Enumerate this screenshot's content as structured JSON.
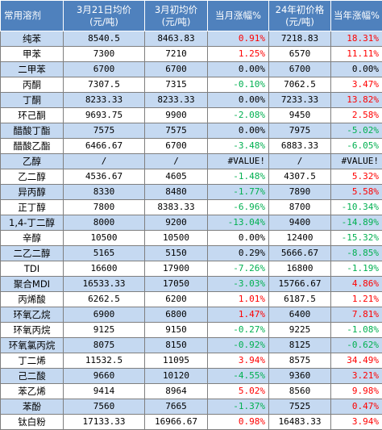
{
  "headers": [
    [
      "常用溶剂"
    ],
    [
      "3月21日均价",
      "(元/吨)"
    ],
    [
      "3月初均价",
      "(元/吨)"
    ],
    [
      "当月涨幅%"
    ],
    [
      "24年初价格",
      "(元/吨)"
    ],
    [
      "当年涨幅%"
    ]
  ],
  "colors": {
    "header": "#4f81bd",
    "row_alt": "#c5d9f1",
    "up": "#ff0000",
    "down": "#00b050"
  },
  "rows": [
    {
      "name": "纯苯",
      "cur": "8540.5",
      "start": "8463.83",
      "mom": "0.91%",
      "mom_dir": "up",
      "y24": "7218.83",
      "ytd": "18.31%",
      "ytd_dir": "up"
    },
    {
      "name": "甲苯",
      "cur": "7300",
      "start": "7210",
      "mom": "1.25%",
      "mom_dir": "up",
      "y24": "6570",
      "ytd": "11.11%",
      "ytd_dir": "up"
    },
    {
      "name": "二甲苯",
      "cur": "6700",
      "start": "6700",
      "mom": "0.00%",
      "mom_dir": "flat",
      "y24": "6700",
      "ytd": "0.00%",
      "ytd_dir": "flat"
    },
    {
      "name": "丙酮",
      "cur": "7307.5",
      "start": "7315",
      "mom": "-0.10%",
      "mom_dir": "down",
      "y24": "7062.5",
      "ytd": "3.47%",
      "ytd_dir": "up"
    },
    {
      "name": "丁酮",
      "cur": "8233.33",
      "start": "8233.33",
      "mom": "0.00%",
      "mom_dir": "flat",
      "y24": "7233.33",
      "ytd": "13.82%",
      "ytd_dir": "up"
    },
    {
      "name": "环己酮",
      "cur": "9693.75",
      "start": "9900",
      "mom": "-2.08%",
      "mom_dir": "down",
      "y24": "9450",
      "ytd": "2.58%",
      "ytd_dir": "up"
    },
    {
      "name": "醋酸丁酯",
      "cur": "7575",
      "start": "7575",
      "mom": "0.00%",
      "mom_dir": "flat",
      "y24": "7975",
      "ytd": "-5.02%",
      "ytd_dir": "down"
    },
    {
      "name": "醋酸乙酯",
      "cur": "6466.67",
      "start": "6700",
      "mom": "-3.48%",
      "mom_dir": "down",
      "y24": "6883.33",
      "ytd": "-6.05%",
      "ytd_dir": "down"
    },
    {
      "name": "乙醇",
      "cur": "/",
      "start": "/",
      "mom": "#VALUE!",
      "mom_dir": "flat",
      "y24": "/",
      "ytd": "#VALUE!",
      "ytd_dir": "flat"
    },
    {
      "name": "乙二醇",
      "cur": "4536.67",
      "start": "4605",
      "mom": "-1.48%",
      "mom_dir": "down",
      "y24": "4307.5",
      "ytd": "5.32%",
      "ytd_dir": "up"
    },
    {
      "name": "异丙醇",
      "cur": "8330",
      "start": "8480",
      "mom": "-1.77%",
      "mom_dir": "down",
      "y24": "7890",
      "ytd": "5.58%",
      "ytd_dir": "up"
    },
    {
      "name": "正丁醇",
      "cur": "7800",
      "start": "8383.33",
      "mom": "-6.96%",
      "mom_dir": "down",
      "y24": "8700",
      "ytd": "-10.34%",
      "ytd_dir": "down"
    },
    {
      "name": "1,4-丁二醇",
      "cur": "8000",
      "start": "9200",
      "mom": "-13.04%",
      "mom_dir": "down",
      "y24": "9400",
      "ytd": "-14.89%",
      "ytd_dir": "down"
    },
    {
      "name": "辛醇",
      "cur": "10500",
      "start": "10500",
      "mom": "0.00%",
      "mom_dir": "flat",
      "y24": "12400",
      "ytd": "-15.32%",
      "ytd_dir": "down"
    },
    {
      "name": "二乙二醇",
      "cur": "5165",
      "start": "5150",
      "mom": "0.29%",
      "mom_dir": "flat",
      "y24": "5666.67",
      "ytd": "-8.85%",
      "ytd_dir": "down"
    },
    {
      "name": "TDI",
      "cur": "16600",
      "start": "17900",
      "mom": "-7.26%",
      "mom_dir": "down",
      "y24": "16800",
      "ytd": "-1.19%",
      "ytd_dir": "down"
    },
    {
      "name": "聚合MDI",
      "cur": "16533.33",
      "start": "17050",
      "mom": "-3.03%",
      "mom_dir": "down",
      "y24": "15766.67",
      "ytd": "4.86%",
      "ytd_dir": "up"
    },
    {
      "name": "丙烯酸",
      "cur": "6262.5",
      "start": "6200",
      "mom": "1.01%",
      "mom_dir": "up",
      "y24": "6187.5",
      "ytd": "1.21%",
      "ytd_dir": "up"
    },
    {
      "name": "环氧乙烷",
      "cur": "6900",
      "start": "6800",
      "mom": "1.47%",
      "mom_dir": "up",
      "y24": "6400",
      "ytd": "7.81%",
      "ytd_dir": "up"
    },
    {
      "name": "环氧丙烷",
      "cur": "9125",
      "start": "9150",
      "mom": "-0.27%",
      "mom_dir": "down",
      "y24": "9225",
      "ytd": "-1.08%",
      "ytd_dir": "down"
    },
    {
      "name": "环氧氯丙烷",
      "cur": "8075",
      "start": "8150",
      "mom": "-0.92%",
      "mom_dir": "down",
      "y24": "8125",
      "ytd": "-0.62%",
      "ytd_dir": "down"
    },
    {
      "name": "丁二烯",
      "cur": "11532.5",
      "start": "11095",
      "mom": "3.94%",
      "mom_dir": "up",
      "y24": "8575",
      "ytd": "34.49%",
      "ytd_dir": "up"
    },
    {
      "name": "己二酸",
      "cur": "9660",
      "start": "10120",
      "mom": "-4.55%",
      "mom_dir": "down",
      "y24": "9360",
      "ytd": "3.21%",
      "ytd_dir": "up"
    },
    {
      "name": "苯乙烯",
      "cur": "9414",
      "start": "8964",
      "mom": "5.02%",
      "mom_dir": "up",
      "y24": "8560",
      "ytd": "9.98%",
      "ytd_dir": "up"
    },
    {
      "name": "苯酚",
      "cur": "7560",
      "start": "7665",
      "mom": "-1.37%",
      "mom_dir": "down",
      "y24": "7525",
      "ytd": "0.47%",
      "ytd_dir": "up"
    },
    {
      "name": "钛白粉",
      "cur": "17133.33",
      "start": "16966.67",
      "mom": "0.98%",
      "mom_dir": "up",
      "y24": "16483.33",
      "ytd": "3.94%",
      "ytd_dir": "up"
    }
  ]
}
